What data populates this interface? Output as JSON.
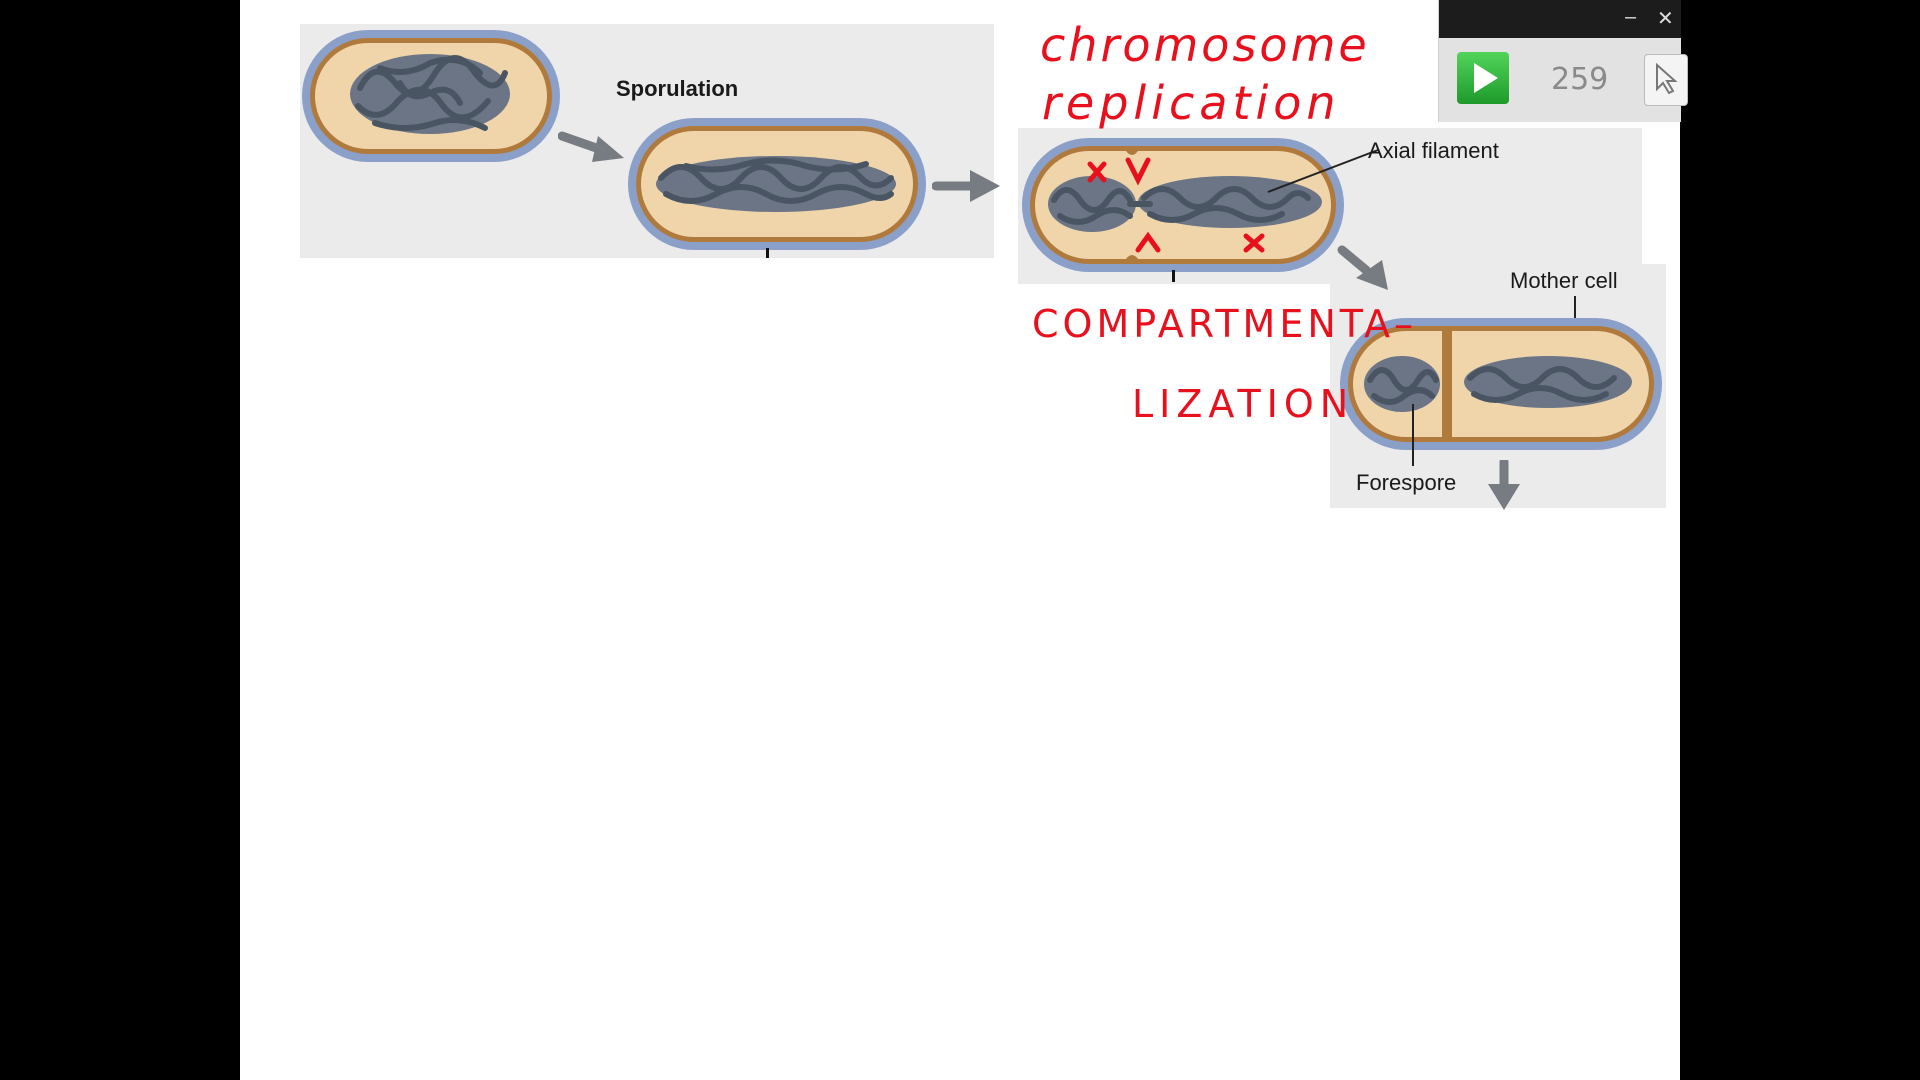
{
  "diagram": {
    "labels": {
      "sporulation": "Sporulation",
      "axial_filament": "Axial filament",
      "mother_cell": "Mother cell",
      "forespore": "Forespore"
    },
    "annotations": {
      "chromosome_replication_line1": "chromosome",
      "chromosome_replication_line2": "replication",
      "compartmentalization_line1": "COMPARTMENTA–",
      "compartmentalization_line2": "LIZATION"
    },
    "colors": {
      "cell_wall": "#8aa0c8",
      "membrane": "#b07a3c",
      "cytoplasm": "#f0d5ab",
      "dna": "#4a5563",
      "ink": "#e8101c",
      "arrow": "#777c82"
    }
  },
  "player": {
    "counter": "259",
    "minimize_glyph": "–",
    "close_glyph": "✕",
    "play_icon": "play-icon",
    "tool_icon": "pointer-icon"
  }
}
